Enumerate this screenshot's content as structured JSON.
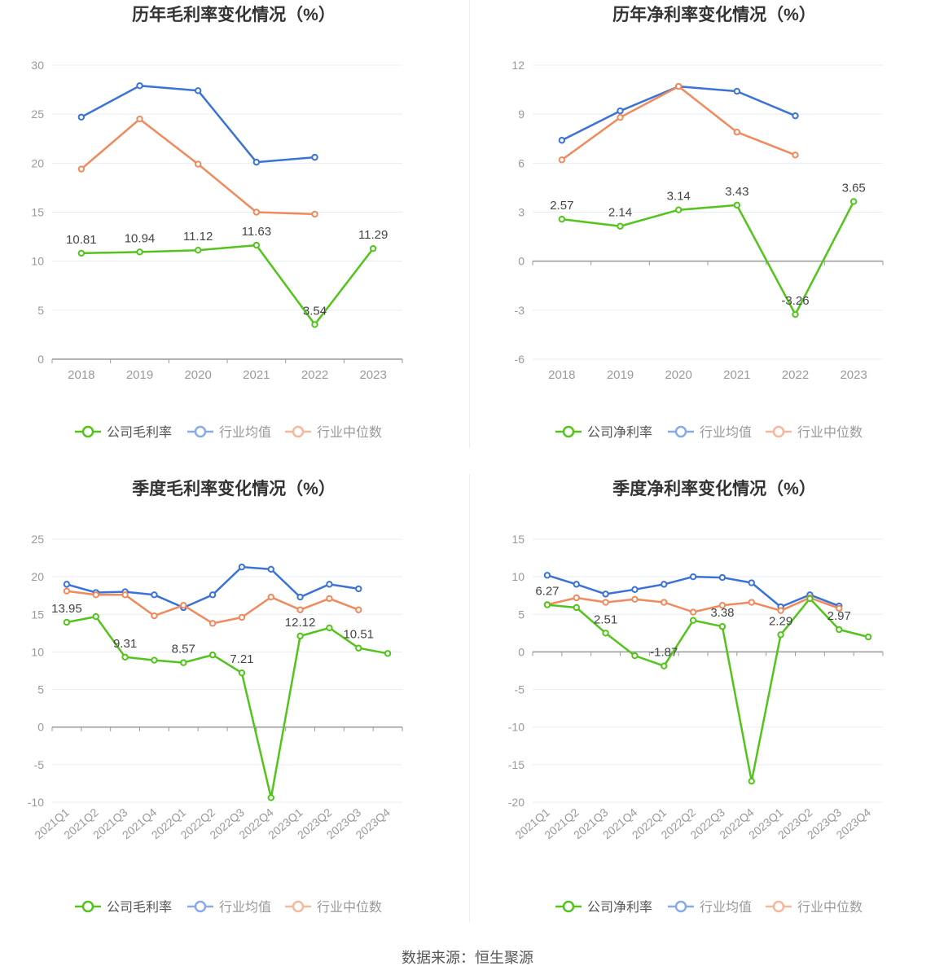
{
  "colors": {
    "company": "#52c41a",
    "industry_avg": "#3a72d8",
    "industry_median": "#f08a5d",
    "axis": "#999999",
    "grid": "#e8ecf4",
    "title": "#333333",
    "label": "#999999",
    "data_label": "#444444"
  },
  "source": "数据来源：恒生聚源",
  "chart_data": [
    {
      "id": "annual-gross",
      "type": "line",
      "title": "历年毛利率变化情况（%）",
      "categories": [
        "2018",
        "2019",
        "2020",
        "2021",
        "2022",
        "2023"
      ],
      "ylim": [
        0,
        30
      ],
      "yticks": [
        0,
        5,
        10,
        15,
        20,
        25,
        30
      ],
      "grid": true,
      "legend_position": "bottom-center",
      "series": [
        {
          "name": "公司毛利率",
          "key": "company",
          "values": [
            10.81,
            10.94,
            11.12,
            11.63,
            3.54,
            11.29
          ],
          "labels": [
            "10.81",
            "10.94",
            "11.12",
            "11.63",
            "3.54",
            "11.29"
          ]
        },
        {
          "name": "行业均值",
          "key": "industry_avg",
          "values": [
            24.7,
            27.9,
            27.4,
            20.1,
            20.6,
            null
          ]
        },
        {
          "name": "行业中位数",
          "key": "industry_median",
          "values": [
            19.4,
            24.5,
            19.9,
            15.0,
            14.8,
            null
          ]
        }
      ]
    },
    {
      "id": "annual-net",
      "type": "line",
      "title": "历年净利率变化情况（%）",
      "categories": [
        "2018",
        "2019",
        "2020",
        "2021",
        "2022",
        "2023"
      ],
      "ylim": [
        -6,
        12
      ],
      "yticks": [
        -6,
        -3,
        0,
        3,
        6,
        9,
        12
      ],
      "grid": true,
      "legend_position": "bottom-center",
      "series": [
        {
          "name": "公司净利率",
          "key": "company",
          "values": [
            2.57,
            2.14,
            3.14,
            3.43,
            -3.26,
            3.65
          ],
          "labels": [
            "2.57",
            "2.14",
            "3.14",
            "3.43",
            "-3.26",
            "3.65"
          ]
        },
        {
          "name": "行业均值",
          "key": "industry_avg",
          "values": [
            7.4,
            9.2,
            10.7,
            10.4,
            8.9,
            null
          ]
        },
        {
          "name": "行业中位数",
          "key": "industry_median",
          "values": [
            6.2,
            8.8,
            10.7,
            7.9,
            6.5,
            null
          ]
        }
      ]
    },
    {
      "id": "quarterly-gross",
      "type": "line",
      "title": "季度毛利率变化情况（%）",
      "categories": [
        "2021Q1",
        "2021Q2",
        "2021Q3",
        "2021Q4",
        "2022Q1",
        "2022Q2",
        "2022Q3",
        "2022Q4",
        "2023Q1",
        "2023Q2",
        "2023Q3",
        "2023Q4"
      ],
      "ylim": [
        -10,
        25
      ],
      "yticks": [
        -10,
        -5,
        0,
        5,
        10,
        15,
        20,
        25
      ],
      "grid": true,
      "legend_position": "bottom-center",
      "series": [
        {
          "name": "公司毛利率",
          "key": "company",
          "values": [
            13.95,
            14.7,
            9.31,
            8.9,
            8.57,
            9.6,
            7.21,
            -9.4,
            12.12,
            13.2,
            10.51,
            9.8
          ],
          "labels": [
            "13.95",
            "",
            "9.31",
            "",
            "8.57",
            "",
            "7.21",
            "",
            "12.12",
            "",
            "10.51",
            ""
          ]
        },
        {
          "name": "行业均值",
          "key": "industry_avg",
          "values": [
            19.0,
            17.9,
            18.0,
            17.6,
            15.9,
            17.6,
            21.3,
            21.0,
            17.3,
            19.0,
            18.4,
            null
          ]
        },
        {
          "name": "行业中位数",
          "key": "industry_median",
          "values": [
            18.1,
            17.6,
            17.6,
            14.8,
            16.2,
            13.8,
            14.6,
            17.3,
            15.6,
            17.1,
            15.6,
            null
          ]
        }
      ]
    },
    {
      "id": "quarterly-net",
      "type": "line",
      "title": "季度净利率变化情况（%）",
      "categories": [
        "2021Q1",
        "2021Q2",
        "2021Q3",
        "2021Q4",
        "2022Q1",
        "2022Q2",
        "2022Q3",
        "2022Q4",
        "2023Q1",
        "2023Q2",
        "2023Q3",
        "2023Q4"
      ],
      "ylim": [
        -20,
        15
      ],
      "yticks": [
        -20,
        -15,
        -10,
        -5,
        0,
        5,
        10,
        15
      ],
      "grid": true,
      "legend_position": "bottom-center",
      "series": [
        {
          "name": "公司净利率",
          "key": "company",
          "values": [
            6.27,
            5.9,
            2.51,
            -0.5,
            -1.87,
            4.2,
            3.38,
            -17.2,
            2.29,
            7.1,
            2.97,
            2.0
          ],
          "labels": [
            "6.27",
            "",
            "2.51",
            "",
            "-1.87",
            "",
            "3.38",
            "",
            "2.29",
            "",
            "2.97",
            ""
          ]
        },
        {
          "name": "行业均值",
          "key": "industry_avg",
          "values": [
            10.2,
            9.0,
            7.7,
            8.3,
            9.0,
            10.0,
            9.9,
            9.2,
            6.0,
            7.6,
            6.1,
            null
          ]
        },
        {
          "name": "行业中位数",
          "key": "industry_median",
          "values": [
            6.3,
            7.2,
            6.6,
            7.0,
            6.6,
            5.3,
            6.2,
            6.6,
            5.5,
            7.2,
            5.8,
            null
          ]
        }
      ]
    }
  ]
}
